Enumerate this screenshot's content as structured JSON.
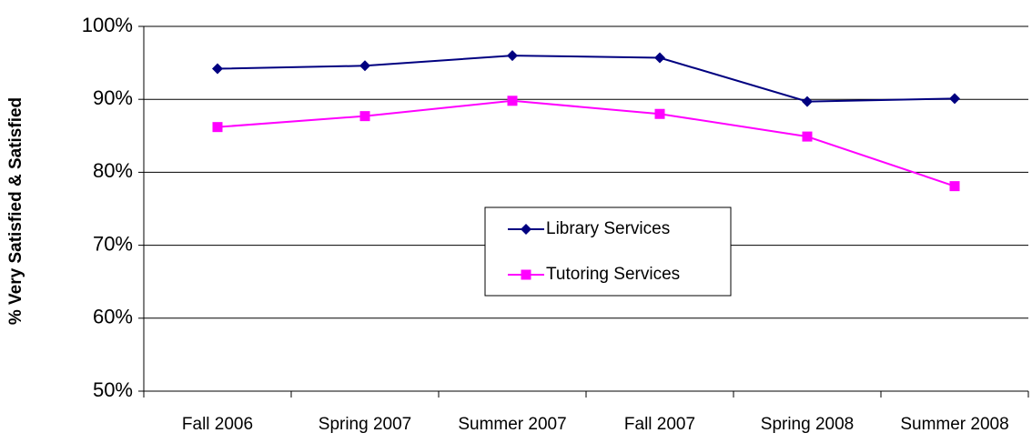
{
  "chart_data": {
    "type": "line",
    "y_label": "% Very Satisfied & Satisfied",
    "categories": [
      "Fall 2006",
      "Spring 2007",
      "Summer 2007",
      "Fall 2007",
      "Spring 2008",
      "Summer 2008"
    ],
    "series": [
      {
        "name": "Library Services",
        "color": "#000080",
        "marker": "diamond",
        "values": [
          94.2,
          94.6,
          96.0,
          95.7,
          89.7,
          90.1
        ]
      },
      {
        "name": "Tutoring Services",
        "color": "#ff00ff",
        "marker": "square",
        "values": [
          86.2,
          87.7,
          89.8,
          88.0,
          84.9,
          78.1
        ]
      }
    ],
    "ylim": [
      50,
      100
    ],
    "yticks": [
      {
        "value": 50,
        "label": "50%"
      },
      {
        "value": 60,
        "label": "60%"
      },
      {
        "value": 70,
        "label": "70%"
      },
      {
        "value": 80,
        "label": "80%"
      },
      {
        "value": 90,
        "label": "90%"
      },
      {
        "value": 100,
        "label": "100%"
      }
    ],
    "grid": true,
    "legend": "center"
  }
}
